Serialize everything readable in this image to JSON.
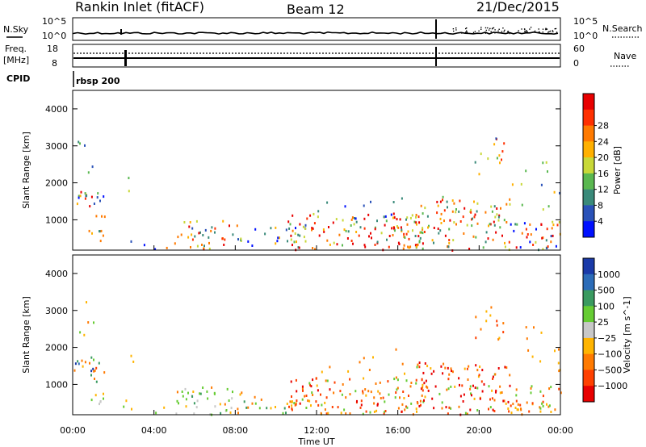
{
  "header": {
    "station": "Rankin Inlet (fitACF)",
    "beam": "Beam 12",
    "date": "21/Dec/2015"
  },
  "top_panels": {
    "nsky_label": "N.Sky",
    "nsearch_label": "N.Search",
    "log_top": "10^5",
    "log_bottom": "10^0",
    "freq_label_1": "Freq.",
    "freq_label_2": "[MHz]",
    "freq_top": "18",
    "freq_bottom": "8",
    "nave_top": "60",
    "nave_bottom": "0",
    "nave_label": "Nave",
    "cpid_label": "CPID",
    "cpid_value": "rbsp 200"
  },
  "chart_data": [
    {
      "type": "heatmap",
      "name": "power",
      "ylabel": "Slant Range [km]",
      "ylim": [
        180,
        4500
      ],
      "y_ticks": [
        "1000",
        "2000",
        "3000",
        "4000"
      ],
      "y_tick_values": [
        1000,
        2000,
        3000,
        4000
      ],
      "colorbar_label": "Power [dB]",
      "colorbar_ticks": [
        "4",
        "8",
        "12",
        "16",
        "20",
        "24",
        "28"
      ],
      "colorbar_colors": [
        "#0010ff",
        "#2a52b8",
        "#3a8a7a",
        "#5ab850",
        "#c8d838",
        "#ffb000",
        "#ff7a00",
        "#ff3000",
        "#e80000"
      ]
    },
    {
      "type": "heatmap",
      "name": "velocity",
      "ylabel": "Slant Range [km]",
      "ylim": [
        180,
        4500
      ],
      "y_ticks": [
        "1000",
        "2000",
        "3000",
        "4000"
      ],
      "y_tick_values": [
        1000,
        2000,
        3000,
        4000
      ],
      "colorbar_label": "Velocity [m s^-1]",
      "colorbar_ticks": [
        "1000",
        "500",
        "100",
        "25",
        "−25",
        "−100",
        "−500",
        "−1000"
      ],
      "colorbar_colors": [
        "#1a3aa8",
        "#2c6cb8",
        "#3a9a60",
        "#66cc33",
        "#c8c8c8",
        "#ffb400",
        "#ff7a00",
        "#ff4000",
        "#e80000"
      ]
    }
  ],
  "x_axis": {
    "label": "Time UT",
    "ticks": [
      "00:00",
      "04:00",
      "08:00",
      "12:00",
      "16:00",
      "20:00",
      "00:00"
    ],
    "tick_hours": [
      0,
      4,
      8,
      12,
      16,
      20,
      24
    ],
    "xlim_hours": [
      0,
      24
    ]
  },
  "colors": {
    "axis": "#000000",
    "background": "#ffffff"
  }
}
